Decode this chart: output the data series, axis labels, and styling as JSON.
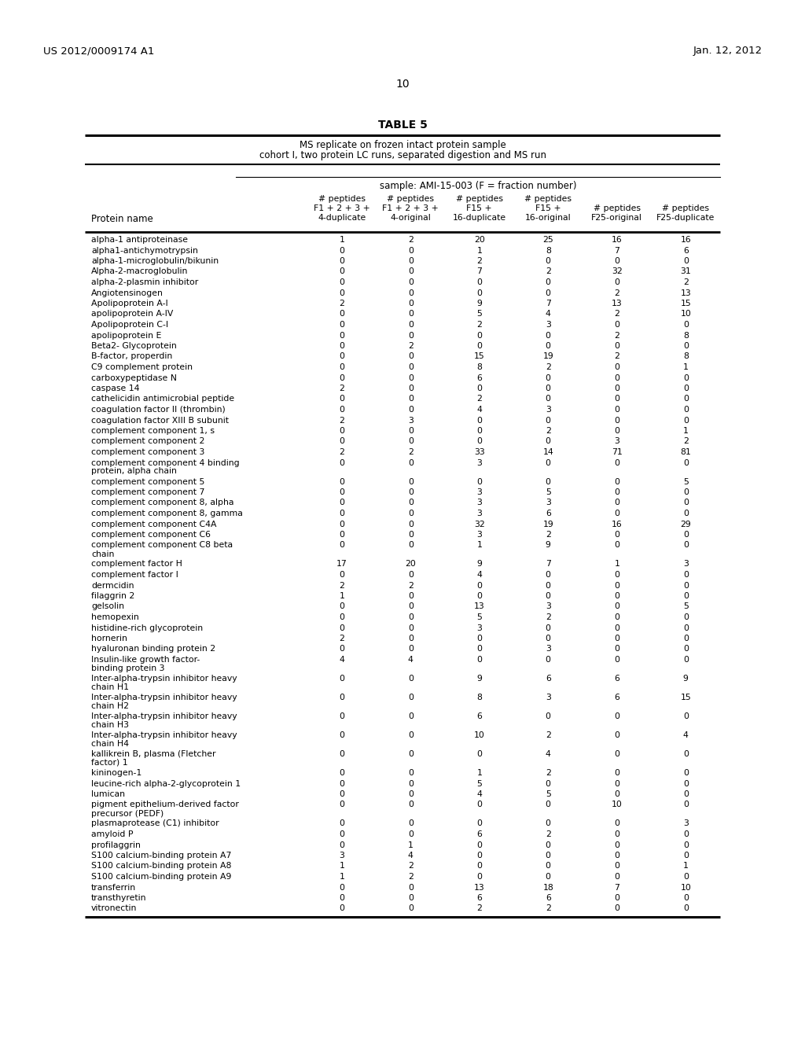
{
  "header_left": "US 2012/0009174 A1",
  "header_right": "Jan. 12, 2012",
  "page_number": "10",
  "table_title": "TABLE 5",
  "table_subtitle1": "MS replicate on frozen intact protein sample",
  "table_subtitle2": "cohort I, two protein LC runs, separated digestion and MS run",
  "sample_label": "sample: AMI-15-003 (F = fraction number)",
  "protein_col_header": "Protein name",
  "col_header_line1": [
    "# peptides",
    "# peptides",
    "# peptides",
    "# peptides",
    "",
    ""
  ],
  "col_header_line2": [
    "F1 + 2 + 3 +",
    "F1 + 2 + 3 +",
    "F15 +",
    "F15 +",
    "# peptides",
    "# peptides"
  ],
  "col_header_line3": [
    "4-duplicate",
    "4-original",
    "16-duplicate",
    "16-original",
    "F25-original",
    "F25-duplicate"
  ],
  "rows": [
    [
      "alpha-1 antiproteinase",
      1,
      2,
      20,
      25,
      16,
      16
    ],
    [
      "alpha1-antichymotrypsin",
      0,
      0,
      1,
      8,
      7,
      6
    ],
    [
      "alpha-1-microglobulin/bikunin",
      0,
      0,
      2,
      0,
      0,
      0
    ],
    [
      "Alpha-2-macroglobulin",
      0,
      0,
      7,
      2,
      32,
      31
    ],
    [
      "alpha-2-plasmin inhibitor",
      0,
      0,
      0,
      0,
      0,
      2
    ],
    [
      "Angiotensinogen",
      0,
      0,
      0,
      0,
      2,
      13
    ],
    [
      "Apolipoprotein A-I",
      2,
      0,
      9,
      7,
      13,
      15
    ],
    [
      "apolipoprotein A-IV",
      0,
      0,
      5,
      4,
      2,
      10
    ],
    [
      "Apolipoprotein C-I",
      0,
      0,
      2,
      3,
      0,
      0
    ],
    [
      "apolipoprotein E",
      0,
      0,
      0,
      0,
      2,
      8
    ],
    [
      "Beta2- Glycoprotein",
      0,
      2,
      0,
      0,
      0,
      0
    ],
    [
      "B-factor, properdin",
      0,
      0,
      15,
      19,
      2,
      8
    ],
    [
      "C9 complement protein",
      0,
      0,
      8,
      2,
      0,
      1
    ],
    [
      "carboxypeptidase N",
      0,
      0,
      6,
      0,
      0,
      0
    ],
    [
      "caspase 14",
      2,
      0,
      0,
      0,
      0,
      0
    ],
    [
      "cathelicidin antimicrobial peptide",
      0,
      0,
      2,
      0,
      0,
      0
    ],
    [
      "coagulation factor II (thrombin)",
      0,
      0,
      4,
      3,
      0,
      0
    ],
    [
      "coagulation factor XIII B subunit",
      2,
      3,
      0,
      0,
      0,
      0
    ],
    [
      "complement component 1, s",
      0,
      0,
      0,
      2,
      0,
      1
    ],
    [
      "complement component 2",
      0,
      0,
      0,
      0,
      3,
      2
    ],
    [
      "complement component 3",
      2,
      2,
      33,
      14,
      71,
      81
    ],
    [
      "complement component 4 binding\nprotein, alpha chain",
      0,
      0,
      3,
      0,
      0,
      0
    ],
    [
      "complement component 5",
      0,
      0,
      0,
      0,
      0,
      5
    ],
    [
      "complement component 7",
      0,
      0,
      3,
      5,
      0,
      0
    ],
    [
      "complement component 8, alpha",
      0,
      0,
      3,
      3,
      0,
      0
    ],
    [
      "complement component 8, gamma",
      0,
      0,
      3,
      6,
      0,
      0
    ],
    [
      "complement component C4A",
      0,
      0,
      32,
      19,
      16,
      29
    ],
    [
      "complement component C6",
      0,
      0,
      3,
      2,
      0,
      0
    ],
    [
      "complement component C8 beta\nchain",
      0,
      0,
      1,
      9,
      0,
      0
    ],
    [
      "complement factor H",
      17,
      20,
      9,
      7,
      1,
      3
    ],
    [
      "complement factor I",
      0,
      0,
      4,
      0,
      0,
      0
    ],
    [
      "dermcidin",
      2,
      2,
      0,
      0,
      0,
      0
    ],
    [
      "filaggrin 2",
      1,
      0,
      0,
      0,
      0,
      0
    ],
    [
      "gelsolin",
      0,
      0,
      13,
      3,
      0,
      5
    ],
    [
      "hemopexin",
      0,
      0,
      5,
      2,
      0,
      0
    ],
    [
      "histidine-rich glycoprotein",
      0,
      0,
      3,
      0,
      0,
      0
    ],
    [
      "hornerin",
      2,
      0,
      0,
      0,
      0,
      0
    ],
    [
      "hyaluronan binding protein 2",
      0,
      0,
      0,
      3,
      0,
      0
    ],
    [
      "Insulin-like growth factor-\nbinding protein 3",
      4,
      4,
      0,
      0,
      0,
      0
    ],
    [
      "Inter-alpha-trypsin inhibitor heavy\nchain H1",
      0,
      0,
      9,
      6,
      6,
      9
    ],
    [
      "Inter-alpha-trypsin inhibitor heavy\nchain H2",
      0,
      0,
      8,
      3,
      6,
      15
    ],
    [
      "Inter-alpha-trypsin inhibitor heavy\nchain H3",
      0,
      0,
      6,
      0,
      0,
      0
    ],
    [
      "Inter-alpha-trypsin inhibitor heavy\nchain H4",
      0,
      0,
      10,
      2,
      0,
      4
    ],
    [
      "kallikrein B, plasma (Fletcher\nfactor) 1",
      0,
      0,
      0,
      4,
      0,
      0
    ],
    [
      "kininogen-1",
      0,
      0,
      1,
      2,
      0,
      0
    ],
    [
      "leucine-rich alpha-2-glycoprotein 1",
      0,
      0,
      5,
      0,
      0,
      0
    ],
    [
      "lumican",
      0,
      0,
      4,
      5,
      0,
      0
    ],
    [
      "pigment epithelium-derived factor\nprecursor (PEDF)",
      0,
      0,
      0,
      0,
      10,
      0
    ],
    [
      "plasmaprotease (C1) inhibitor",
      0,
      0,
      0,
      0,
      0,
      3
    ],
    [
      "amyloid P",
      0,
      0,
      6,
      2,
      0,
      0
    ],
    [
      "profilaggrin",
      0,
      1,
      0,
      0,
      0,
      0
    ],
    [
      "S100 calcium-binding protein A7",
      3,
      4,
      0,
      0,
      0,
      0
    ],
    [
      "S100 calcium-binding protein A8",
      1,
      2,
      0,
      0,
      0,
      1
    ],
    [
      "S100 calcium-binding protein A9",
      1,
      2,
      0,
      0,
      0,
      0
    ],
    [
      "transferrin",
      0,
      0,
      13,
      18,
      7,
      10
    ],
    [
      "transthyretin",
      0,
      0,
      6,
      6,
      0,
      0
    ],
    [
      "vitronectin",
      0,
      0,
      2,
      2,
      0,
      0
    ]
  ]
}
